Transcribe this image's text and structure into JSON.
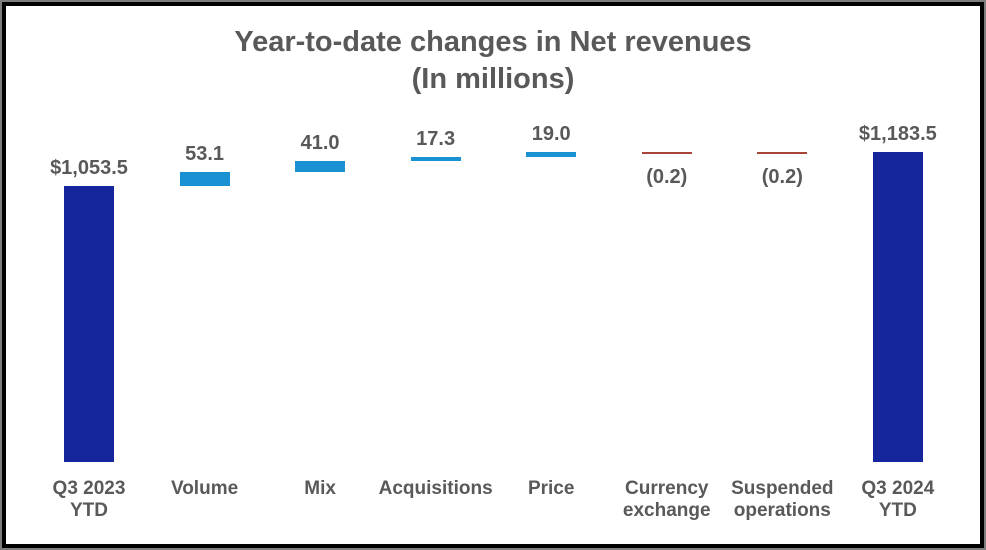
{
  "frame": {
    "outer_edge_color": "#7d7d7d",
    "border_color": "#000000",
    "background": "#ffffff"
  },
  "title": {
    "line1": "Year-to-date changes in Net revenues",
    "line2": "(In millions)",
    "color": "#595959"
  },
  "colors": {
    "total_bar": "#15259c",
    "increase_bar": "#1991d2",
    "decrease_bar": "#a84438",
    "text": "#595959"
  },
  "chart_data": {
    "type": "bar",
    "subtype": "waterfall",
    "title": "Year-to-date changes in Net revenues",
    "subtitle": "(In millions)",
    "categories": [
      "Q3 2023 YTD",
      "Volume",
      "Mix",
      "Acquisitions",
      "Price",
      "Currency exchange",
      "Suspended operations",
      "Q3 2024 YTD"
    ],
    "category_display": [
      "Q3 2023\nYTD",
      "Volume",
      "Mix",
      "Acquisitions",
      "Price",
      "Currency\nexchange",
      "Suspended\noperations",
      "Q3 2024\nYTD"
    ],
    "values": [
      1053.5,
      53.1,
      41.0,
      17.3,
      19.0,
      -0.2,
      -0.2,
      1183.5
    ],
    "roles": [
      "total",
      "increase",
      "increase",
      "increase",
      "increase",
      "decrease",
      "decrease",
      "total"
    ],
    "data_labels": [
      "$1,053.5",
      "53.1",
      "41.0",
      "17.3",
      "19.0",
      "(0.2)",
      "(0.2)",
      "$1,183.5"
    ],
    "ylim": [
      0,
      1200
    ],
    "grid": false,
    "legend": "none",
    "axis_line": false
  }
}
